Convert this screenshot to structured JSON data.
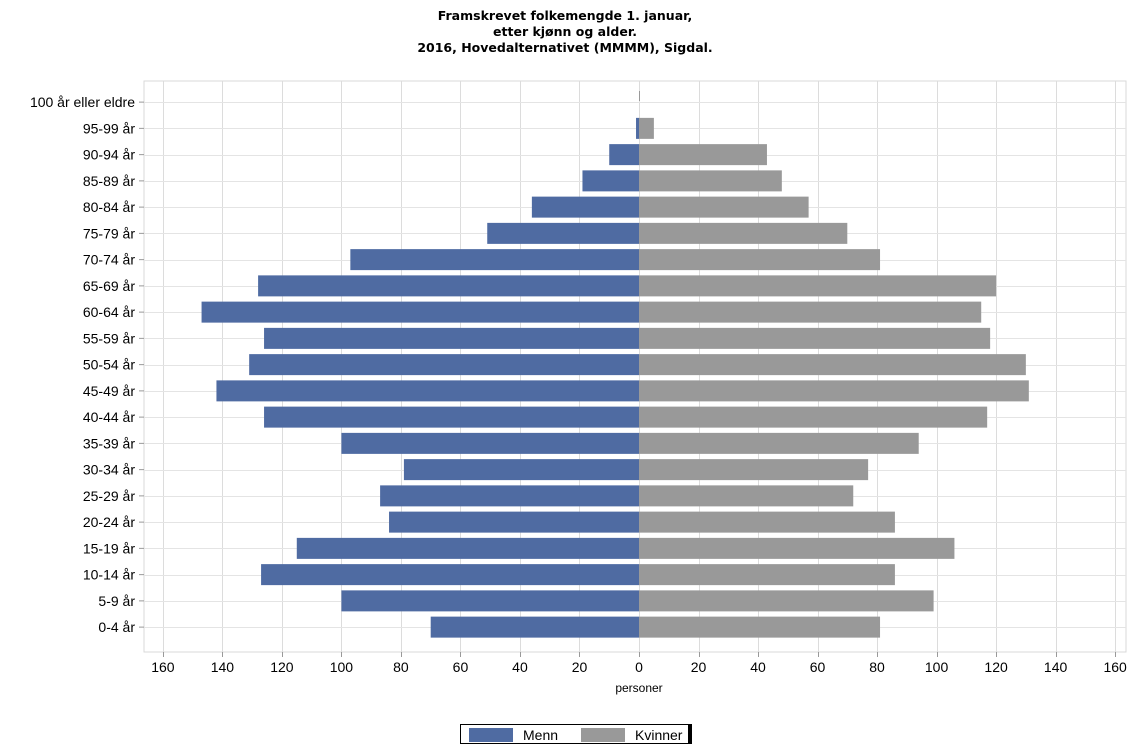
{
  "chart_data": {
    "type": "bar",
    "orientation": "horizontal",
    "layout": "population-pyramid",
    "title": [
      "Framskrevet folkemengde 1. januar,",
      "etter kjønn og alder.",
      "2016, Hovedalternativet (MMMM), Sigdal."
    ],
    "xlabel": "personer",
    "ylabel": "",
    "xlim": [
      -165,
      165
    ],
    "xticks": [
      -160,
      -140,
      -120,
      -100,
      -80,
      -60,
      -40,
      -20,
      0,
      20,
      40,
      60,
      80,
      100,
      120,
      140,
      160
    ],
    "xtick_labels": [
      "160",
      "140",
      "120",
      "100",
      "80",
      "60",
      "40",
      "20",
      "0",
      "20",
      "40",
      "60",
      "80",
      "100",
      "120",
      "140",
      "160"
    ],
    "grid": true,
    "legend_position": "bottom-center",
    "categories": [
      "100 år eller eldre",
      "95-99 år",
      "90-94 år",
      "85-89 år",
      "80-84 år",
      "75-79 år",
      "70-74 år",
      "65-69 år",
      "60-64 år",
      "55-59 år",
      "50-54 år",
      "45-49 år",
      "40-44 år",
      "35-39 år",
      "30-34 år",
      "25-29 år",
      "20-24 år",
      "15-19 år",
      "10-14 år",
      "5-9 år",
      "0-4 år"
    ],
    "series": [
      {
        "name": "Menn",
        "color": "#4f6ba2",
        "side": "left",
        "values": [
          0,
          1,
          10,
          19,
          36,
          51,
          97,
          128,
          147,
          126,
          131,
          142,
          126,
          100,
          79,
          87,
          84,
          115,
          127,
          100,
          70
        ]
      },
      {
        "name": "Kvinner",
        "color": "#999999",
        "side": "right",
        "values": [
          0,
          5,
          43,
          48,
          57,
          70,
          81,
          120,
          115,
          118,
          130,
          131,
          117,
          94,
          77,
          72,
          86,
          106,
          86,
          99,
          81
        ]
      }
    ]
  }
}
